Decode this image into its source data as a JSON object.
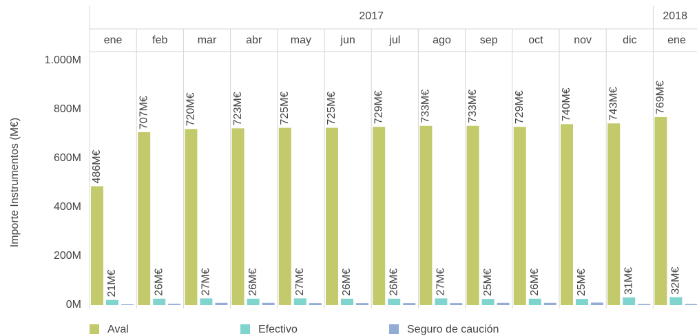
{
  "chart_data": {
    "type": "bar",
    "y_axis_label": "Importe Instrumentos (M€)",
    "categories": [
      "ene",
      "feb",
      "mar",
      "abr",
      "may",
      "jun",
      "jul",
      "ago",
      "sep",
      "oct",
      "nov",
      "dic",
      "ene"
    ],
    "category_years": [
      "2017",
      "2017",
      "2017",
      "2017",
      "2017",
      "2017",
      "2017",
      "2017",
      "2017",
      "2017",
      "2017",
      "2017",
      "2018"
    ],
    "ylim": [
      0,
      1000
    ],
    "yticks": [
      {
        "value": 0,
        "label": "0M"
      },
      {
        "value": 200,
        "label": "200M"
      },
      {
        "value": 400,
        "label": "400M"
      },
      {
        "value": 600,
        "label": "600M"
      },
      {
        "value": 800,
        "label": "800M"
      },
      {
        "value": 1000,
        "label": "1.000M"
      }
    ],
    "series": [
      {
        "name": "Aval",
        "color": "#c3ca6c",
        "values": [
          486,
          707,
          720,
          723,
          725,
          725,
          729,
          733,
          733,
          729,
          740,
          743,
          769
        ],
        "value_labels": [
          "486M€",
          "707M€",
          "720M€",
          "723M€",
          "725M€",
          "725M€",
          "729M€",
          "733M€",
          "733M€",
          "729M€",
          "740M€",
          "743M€",
          "769M€"
        ]
      },
      {
        "name": "Efectivo",
        "color": "#7fd5cd",
        "values": [
          21,
          26,
          27,
          26,
          27,
          26,
          26,
          27,
          25,
          26,
          25,
          31,
          32
        ],
        "value_labels": [
          "21M€",
          "26M€",
          "27M€",
          "26M€",
          "27M€",
          "26M€",
          "26M€",
          "27M€",
          "25M€",
          "26M€",
          "25M€",
          "31M€",
          "32M€"
        ]
      },
      {
        "name": "Seguro de caución",
        "color": "#93acd6",
        "values": [
          3,
          5,
          9,
          9,
          8,
          8,
          8,
          8,
          9,
          9,
          10,
          4,
          4
        ]
      }
    ]
  }
}
